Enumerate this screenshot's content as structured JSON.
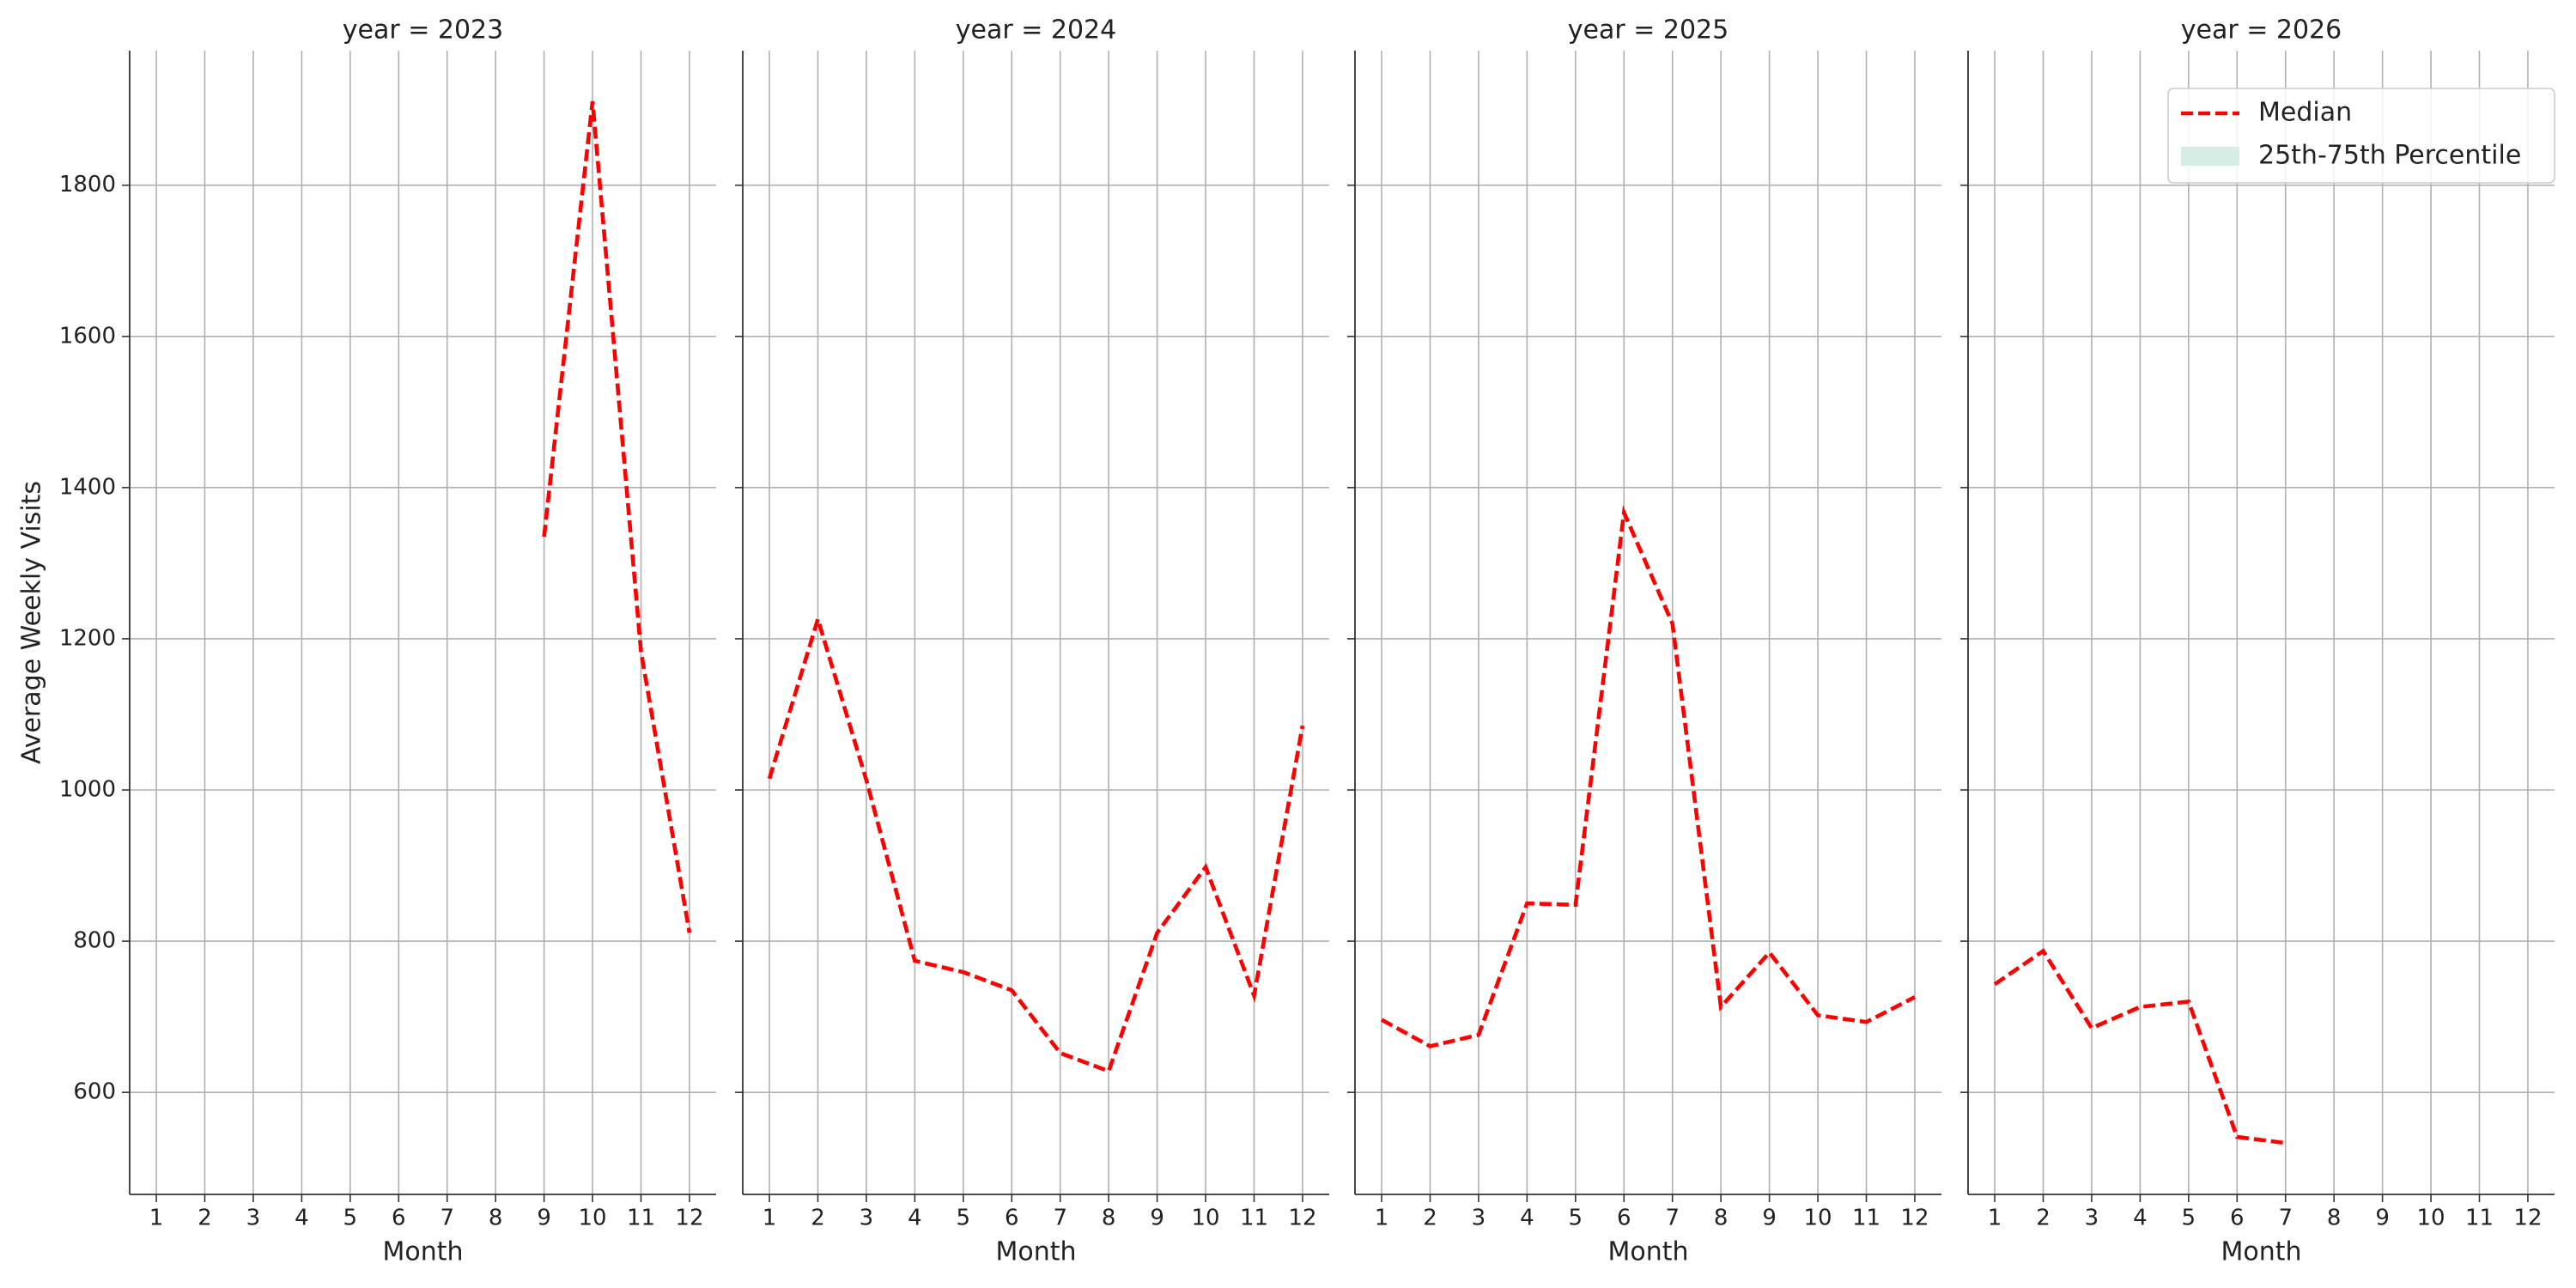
{
  "chart_data": [
    {
      "type": "line",
      "title": "year = 2023",
      "xlabel": "Month",
      "ylabel": "Average Weekly Visits",
      "x": [
        1,
        2,
        3,
        4,
        5,
        6,
        7,
        8,
        9,
        10,
        11,
        12
      ],
      "xlim": [
        0.45,
        12.55
      ],
      "xticks": [
        1,
        2,
        3,
        4,
        5,
        6,
        7,
        8,
        9,
        10,
        11,
        12
      ],
      "ylim": [
        465,
        1978
      ],
      "yticks": [
        600,
        800,
        1000,
        1200,
        1400,
        1600,
        1800
      ],
      "grid": true,
      "series": [
        {
          "name": "Median",
          "color": "#ff0000",
          "style": "dashed",
          "values": [
            null,
            null,
            null,
            null,
            null,
            null,
            null,
            null,
            1335,
            1911,
            1183,
            811
          ]
        }
      ]
    },
    {
      "type": "line",
      "title": "year = 2024",
      "xlabel": "Month",
      "x": [
        1,
        2,
        3,
        4,
        5,
        6,
        7,
        8,
        9,
        10,
        11,
        12
      ],
      "xlim": [
        0.45,
        12.55
      ],
      "xticks": [
        1,
        2,
        3,
        4,
        5,
        6,
        7,
        8,
        9,
        10,
        11,
        12
      ],
      "ylim": [
        465,
        1978
      ],
      "yticks": [
        600,
        800,
        1000,
        1200,
        1400,
        1600,
        1800
      ],
      "grid": true,
      "series": [
        {
          "name": "Median",
          "color": "#ff0000",
          "style": "dashed",
          "values": [
            1015,
            1226,
            1013,
            774,
            759,
            735,
            652,
            628,
            811,
            898,
            728,
            1085
          ]
        }
      ]
    },
    {
      "type": "line",
      "title": "year = 2025",
      "xlabel": "Month",
      "x": [
        1,
        2,
        3,
        4,
        5,
        6,
        7,
        8,
        9,
        10,
        11,
        12
      ],
      "xlim": [
        0.45,
        12.55
      ],
      "xticks": [
        1,
        2,
        3,
        4,
        5,
        6,
        7,
        8,
        9,
        10,
        11,
        12
      ],
      "ylim": [
        465,
        1978
      ],
      "yticks": [
        600,
        800,
        1000,
        1200,
        1400,
        1600,
        1800
      ],
      "grid": true,
      "series": [
        {
          "name": "Median",
          "color": "#ff0000",
          "style": "dashed",
          "values": [
            696,
            661,
            676,
            850,
            848,
            1367,
            1220,
            713,
            785,
            702,
            693,
            726
          ]
        }
      ]
    },
    {
      "type": "line",
      "title": "year = 2026",
      "xlabel": "Month",
      "x": [
        1,
        2,
        3,
        4,
        5,
        6,
        7,
        8,
        9,
        10,
        11,
        12
      ],
      "xlim": [
        0.45,
        12.55
      ],
      "xticks": [
        1,
        2,
        3,
        4,
        5,
        6,
        7,
        8,
        9,
        10,
        11,
        12
      ],
      "ylim": [
        465,
        1978
      ],
      "yticks": [
        600,
        800,
        1000,
        1200,
        1400,
        1600,
        1800
      ],
      "grid": true,
      "series": [
        {
          "name": "Median",
          "color": "#ff0000",
          "style": "dashed",
          "values": [
            743,
            787,
            685,
            713,
            720,
            541,
            533,
            null,
            null,
            null,
            null,
            null
          ]
        }
      ],
      "legend": {
        "loc": "upper right",
        "entries": [
          {
            "name": "Median",
            "color": "#ff0000",
            "style": "dashed"
          },
          {
            "name": "25th-75th Percentile",
            "color": "#d5ede4",
            "style": "patch"
          }
        ]
      }
    }
  ]
}
